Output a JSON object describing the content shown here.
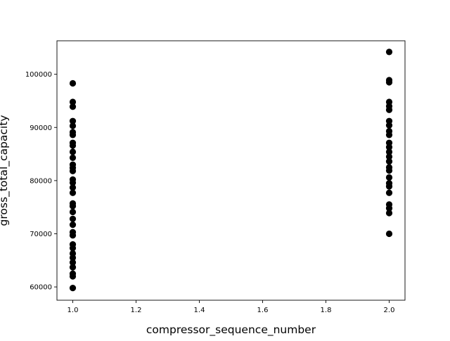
{
  "chart_data": {
    "type": "scatter",
    "title": "",
    "xlabel": "compressor_sequence_number",
    "ylabel": "gross_total_capacity",
    "xlim": [
      0.95,
      2.05
    ],
    "ylim": [
      57500,
      106300
    ],
    "x_ticks": [
      1.0,
      1.2,
      1.4,
      1.6,
      1.8,
      2.0
    ],
    "x_tick_labels": [
      "1.0",
      "1.2",
      "1.4",
      "1.6",
      "1.8",
      "2.0"
    ],
    "y_ticks": [
      60000,
      70000,
      80000,
      90000,
      100000
    ],
    "y_tick_labels": [
      "60000",
      "70000",
      "80000",
      "90000",
      "100000"
    ],
    "grid": false,
    "legend": "none",
    "marker_color": "#000000",
    "series": [
      {
        "points": [
          {
            "x": 1,
            "y": 98300
          },
          {
            "x": 1,
            "y": 94800
          },
          {
            "x": 1,
            "y": 93900
          },
          {
            "x": 1,
            "y": 91200
          },
          {
            "x": 1,
            "y": 90300
          },
          {
            "x": 1,
            "y": 89100
          },
          {
            "x": 1,
            "y": 88600
          },
          {
            "x": 1,
            "y": 87100
          },
          {
            "x": 1,
            "y": 86600
          },
          {
            "x": 1,
            "y": 85400
          },
          {
            "x": 1,
            "y": 84300
          },
          {
            "x": 1,
            "y": 83000
          },
          {
            "x": 1,
            "y": 82400
          },
          {
            "x": 1,
            "y": 81800
          },
          {
            "x": 1,
            "y": 80200
          },
          {
            "x": 1,
            "y": 79600
          },
          {
            "x": 1,
            "y": 78700
          },
          {
            "x": 1,
            "y": 77700
          },
          {
            "x": 1,
            "y": 75700
          },
          {
            "x": 1,
            "y": 75200
          },
          {
            "x": 1,
            "y": 74100
          },
          {
            "x": 1,
            "y": 72800
          },
          {
            "x": 1,
            "y": 71700
          },
          {
            "x": 1,
            "y": 70300
          },
          {
            "x": 1,
            "y": 69700
          },
          {
            "x": 1,
            "y": 68000
          },
          {
            "x": 1,
            "y": 67300
          },
          {
            "x": 1,
            "y": 66300
          },
          {
            "x": 1,
            "y": 65500
          },
          {
            "x": 1,
            "y": 64600
          },
          {
            "x": 1,
            "y": 63700
          },
          {
            "x": 1,
            "y": 62500
          },
          {
            "x": 1,
            "y": 62000
          },
          {
            "x": 1,
            "y": 59800
          },
          {
            "x": 2,
            "y": 104200
          },
          {
            "x": 2,
            "y": 98900
          },
          {
            "x": 2,
            "y": 98500
          },
          {
            "x": 2,
            "y": 94800
          },
          {
            "x": 2,
            "y": 94000
          },
          {
            "x": 2,
            "y": 93300
          },
          {
            "x": 2,
            "y": 91200
          },
          {
            "x": 2,
            "y": 90400
          },
          {
            "x": 2,
            "y": 89300
          },
          {
            "x": 2,
            "y": 88600
          },
          {
            "x": 2,
            "y": 87100
          },
          {
            "x": 2,
            "y": 86300
          },
          {
            "x": 2,
            "y": 85400
          },
          {
            "x": 2,
            "y": 84500
          },
          {
            "x": 2,
            "y": 83600
          },
          {
            "x": 2,
            "y": 82500
          },
          {
            "x": 2,
            "y": 81900
          },
          {
            "x": 2,
            "y": 80600
          },
          {
            "x": 2,
            "y": 79500
          },
          {
            "x": 2,
            "y": 78900
          },
          {
            "x": 2,
            "y": 77700
          },
          {
            "x": 2,
            "y": 75500
          },
          {
            "x": 2,
            "y": 74800
          },
          {
            "x": 2,
            "y": 73900
          },
          {
            "x": 2,
            "y": 70000
          }
        ]
      }
    ]
  }
}
